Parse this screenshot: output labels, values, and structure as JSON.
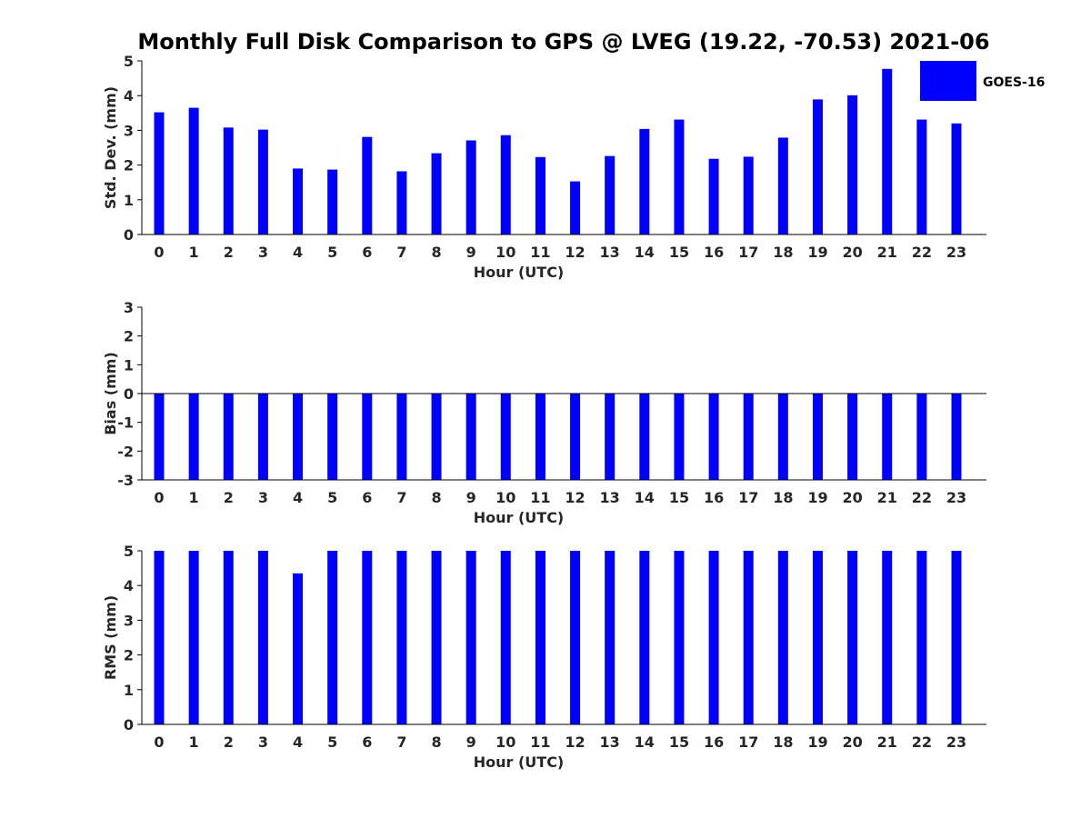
{
  "title": "Monthly Full Disk Comparison to GPS @ LVEG (19.22, -70.53) 2021-06",
  "legend": {
    "label": "GOES-16",
    "color": "#0000ff"
  },
  "chart_data": [
    {
      "type": "bar",
      "xlabel": "Hour (UTC)",
      "ylabel": "Std. Dev. (mm)",
      "categories": [
        "0",
        "1",
        "2",
        "3",
        "4",
        "5",
        "6",
        "7",
        "8",
        "9",
        "10",
        "11",
        "12",
        "13",
        "14",
        "15",
        "16",
        "17",
        "18",
        "19",
        "20",
        "21",
        "22",
        "23"
      ],
      "ylim": [
        0,
        5
      ],
      "yticks": [
        "0",
        "1",
        "2",
        "3",
        "4",
        "5"
      ],
      "series": [
        {
          "name": "GOES-16",
          "color": "#0000ff",
          "values": [
            3.52,
            3.65,
            3.08,
            3.02,
            1.9,
            1.87,
            2.81,
            1.82,
            2.34,
            2.71,
            2.86,
            2.23,
            1.53,
            2.26,
            3.04,
            3.31,
            2.18,
            2.24,
            2.79,
            3.89,
            4.01,
            4.77,
            3.31,
            3.2
          ]
        }
      ]
    },
    {
      "type": "bar",
      "xlabel": "Hour (UTC)",
      "ylabel": "Bias (mm)",
      "categories": [
        "0",
        "1",
        "2",
        "3",
        "4",
        "5",
        "6",
        "7",
        "8",
        "9",
        "10",
        "11",
        "12",
        "13",
        "14",
        "15",
        "16",
        "17",
        "18",
        "19",
        "20",
        "21",
        "22",
        "23"
      ],
      "ylim": [
        -3,
        3
      ],
      "yticks": [
        "-3",
        "-2",
        "-1",
        "0",
        "1",
        "2",
        "3"
      ],
      "series": [
        {
          "name": "GOES-16",
          "color": "#0000ff",
          "values": [
            -3,
            -3,
            -3,
            -3,
            -3,
            -3,
            -3,
            -3,
            -3,
            -3,
            -3,
            -3,
            -3,
            -3,
            -3,
            -3,
            -3,
            -3,
            -3,
            -3,
            -3,
            -3,
            -3,
            -3
          ]
        }
      ]
    },
    {
      "type": "bar",
      "xlabel": "Hour (UTC)",
      "ylabel": "RMS (mm)",
      "categories": [
        "0",
        "1",
        "2",
        "3",
        "4",
        "5",
        "6",
        "7",
        "8",
        "9",
        "10",
        "11",
        "12",
        "13",
        "14",
        "15",
        "16",
        "17",
        "18",
        "19",
        "20",
        "21",
        "22",
        "23"
      ],
      "ylim": [
        0,
        5
      ],
      "yticks": [
        "0",
        "1",
        "2",
        "3",
        "4",
        "5"
      ],
      "series": [
        {
          "name": "GOES-16",
          "color": "#0000ff",
          "values": [
            5,
            5,
            5,
            5,
            4.35,
            5,
            5,
            5,
            5,
            5,
            5,
            5,
            5,
            5,
            5,
            5,
            5,
            5,
            5,
            5,
            5,
            5,
            5,
            5
          ]
        }
      ]
    }
  ]
}
